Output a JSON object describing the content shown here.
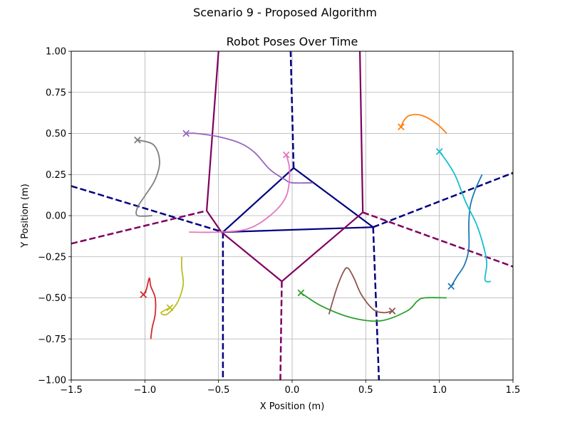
{
  "figure": {
    "suptitle": "Scenario 9 - Proposed Algorithm"
  },
  "chart_data": {
    "type": "line",
    "title": "Robot Poses Over Time",
    "xlabel": "X Position (m)",
    "ylabel": "Y Position (m)",
    "xlim": [
      -1.5,
      1.5
    ],
    "ylim": [
      -1.0,
      1.0
    ],
    "xticks": [
      -1.5,
      -1.0,
      -0.5,
      0.0,
      0.5,
      1.0,
      1.5
    ],
    "yticks": [
      -1.0,
      -0.75,
      -0.5,
      -0.25,
      0.0,
      0.25,
      0.5,
      0.75,
      1.0
    ],
    "xtick_labels": [
      "−1.5",
      "−1.0",
      "−0.5",
      "0.0",
      "0.5",
      "1.0",
      "1.5"
    ],
    "ytick_labels": [
      "−1.00",
      "−0.75",
      "−0.50",
      "−0.25",
      "0.00",
      "0.25",
      "0.50",
      "0.75",
      "1.00"
    ],
    "grid": true,
    "series": [
      {
        "color": "#1f77b4",
        "end_marker": [
          1.08,
          -0.43
        ],
        "points": [
          [
            1.29,
            0.25
          ],
          [
            1.24,
            0.15
          ],
          [
            1.21,
            0.06
          ],
          [
            1.2,
            -0.05
          ],
          [
            1.2,
            -0.2
          ],
          [
            1.17,
            -0.3
          ],
          [
            1.12,
            -0.37
          ],
          [
            1.08,
            -0.43
          ]
        ]
      },
      {
        "color": "#ff7f0e",
        "end_marker": [
          0.74,
          0.54
        ],
        "points": [
          [
            1.05,
            0.5
          ],
          [
            0.98,
            0.56
          ],
          [
            0.88,
            0.61
          ],
          [
            0.8,
            0.61
          ],
          [
            0.76,
            0.58
          ],
          [
            0.74,
            0.54
          ]
        ]
      },
      {
        "color": "#2ca02c",
        "end_marker": [
          0.06,
          -0.47
        ],
        "points": [
          [
            1.05,
            -0.5
          ],
          [
            0.9,
            -0.5
          ],
          [
            0.85,
            -0.52
          ],
          [
            0.78,
            -0.58
          ],
          [
            0.6,
            -0.64
          ],
          [
            0.4,
            -0.62
          ],
          [
            0.2,
            -0.55
          ],
          [
            0.06,
            -0.47
          ]
        ]
      },
      {
        "color": "#d62728",
        "end_marker": [
          -1.01,
          -0.48
        ],
        "points": [
          [
            -0.96,
            -0.75
          ],
          [
            -0.95,
            -0.68
          ],
          [
            -0.93,
            -0.6
          ],
          [
            -0.93,
            -0.5
          ],
          [
            -0.96,
            -0.43
          ],
          [
            -0.97,
            -0.38
          ],
          [
            -0.99,
            -0.45
          ],
          [
            -1.01,
            -0.48
          ]
        ]
      },
      {
        "color": "#9467bd",
        "end_marker": [
          -0.72,
          0.5
        ],
        "points": [
          [
            0.14,
            0.2
          ],
          [
            0.0,
            0.2
          ],
          [
            -0.05,
            0.22
          ],
          [
            -0.15,
            0.28
          ],
          [
            -0.25,
            0.38
          ],
          [
            -0.35,
            0.44
          ],
          [
            -0.5,
            0.48
          ],
          [
            -0.65,
            0.5
          ],
          [
            -0.72,
            0.5
          ]
        ]
      },
      {
        "color": "#8c564b",
        "end_marker": [
          0.68,
          -0.58
        ],
        "points": [
          [
            0.25,
            -0.6
          ],
          [
            0.3,
            -0.45
          ],
          [
            0.35,
            -0.34
          ],
          [
            0.38,
            -0.32
          ],
          [
            0.42,
            -0.38
          ],
          [
            0.47,
            -0.48
          ],
          [
            0.55,
            -0.57
          ],
          [
            0.62,
            -0.59
          ],
          [
            0.68,
            -0.58
          ]
        ]
      },
      {
        "color": "#e377c2",
        "end_marker": [
          -0.04,
          0.37
        ],
        "points": [
          [
            -0.7,
            -0.1
          ],
          [
            -0.5,
            -0.1
          ],
          [
            -0.3,
            -0.08
          ],
          [
            -0.15,
            0.0
          ],
          [
            -0.05,
            0.1
          ],
          [
            -0.02,
            0.2
          ],
          [
            -0.02,
            0.3
          ],
          [
            -0.04,
            0.37
          ]
        ]
      },
      {
        "color": "#7f7f7f",
        "end_marker": [
          -1.05,
          0.46
        ],
        "points": [
          [
            -0.95,
            0.0
          ],
          [
            -1.05,
            0.0
          ],
          [
            -1.05,
            0.05
          ],
          [
            -1.0,
            0.12
          ],
          [
            -0.93,
            0.22
          ],
          [
            -0.9,
            0.33
          ],
          [
            -0.94,
            0.43
          ],
          [
            -1.05,
            0.46
          ]
        ]
      },
      {
        "color": "#bcbd22",
        "end_marker": [
          -0.83,
          -0.56
        ],
        "points": [
          [
            -0.75,
            -0.25
          ],
          [
            -0.75,
            -0.32
          ],
          [
            -0.74,
            -0.42
          ],
          [
            -0.78,
            -0.53
          ],
          [
            -0.85,
            -0.6
          ],
          [
            -0.89,
            -0.59
          ],
          [
            -0.83,
            -0.56
          ]
        ]
      },
      {
        "color": "#17becf",
        "end_marker": [
          1.0,
          0.39
        ],
        "points": [
          [
            1.35,
            -0.4
          ],
          [
            1.31,
            -0.39
          ],
          [
            1.32,
            -0.27
          ],
          [
            1.26,
            -0.07
          ],
          [
            1.18,
            0.08
          ],
          [
            1.11,
            0.24
          ],
          [
            1.05,
            0.33
          ],
          [
            1.0,
            0.39
          ]
        ]
      }
    ],
    "partition_solid": [
      {
        "color": "#000080",
        "points": [
          [
            -0.47,
            -0.1
          ],
          [
            0.01,
            0.29
          ],
          [
            0.55,
            -0.07
          ],
          [
            -0.47,
            -0.1
          ]
        ]
      },
      {
        "color": "#800060",
        "points": [
          [
            -0.5,
            1.0
          ],
          [
            -0.58,
            0.03
          ],
          [
            -0.48,
            -0.1
          ],
          [
            -0.07,
            -0.4
          ],
          [
            0.48,
            0.02
          ],
          [
            0.46,
            1.0
          ]
        ]
      }
    ],
    "partition_dashed": [
      {
        "color": "#000080",
        "points": [
          [
            -1.5,
            0.18
          ],
          [
            -0.47,
            -0.1
          ]
        ]
      },
      {
        "color": "#000080",
        "points": [
          [
            -0.47,
            -0.1
          ],
          [
            -0.47,
            -1.0
          ]
        ]
      },
      {
        "color": "#000080",
        "points": [
          [
            0.55,
            -0.07
          ],
          [
            0.59,
            -1.0
          ]
        ]
      },
      {
        "color": "#000080",
        "points": [
          [
            0.55,
            -0.07
          ],
          [
            1.5,
            0.26
          ]
        ]
      },
      {
        "color": "#000080",
        "points": [
          [
            0.01,
            0.29
          ],
          [
            -0.01,
            1.0
          ]
        ]
      },
      {
        "color": "#800060",
        "points": [
          [
            -1.5,
            -0.17
          ],
          [
            -0.58,
            0.03
          ]
        ]
      },
      {
        "color": "#800060",
        "points": [
          [
            -0.07,
            -0.4
          ],
          [
            -0.08,
            -1.0
          ]
        ]
      },
      {
        "color": "#800060",
        "points": [
          [
            0.48,
            0.02
          ],
          [
            1.5,
            -0.31
          ]
        ]
      }
    ]
  }
}
